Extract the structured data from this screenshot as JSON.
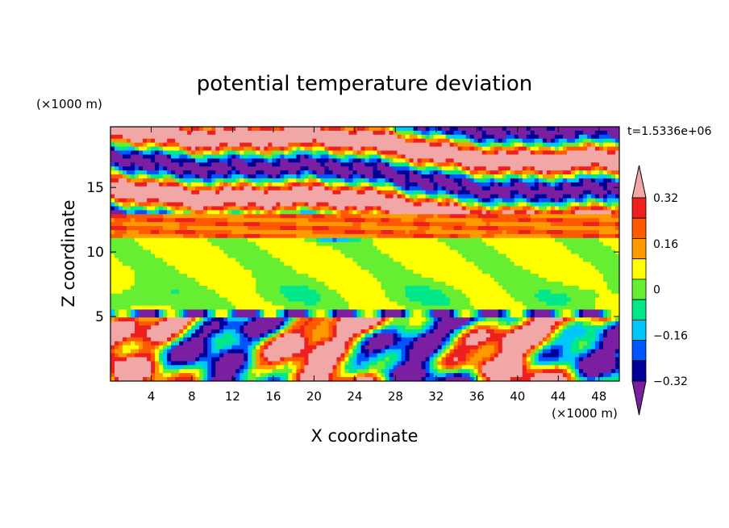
{
  "chart_data": {
    "type": "heatmap",
    "title": "potential temperature deviation",
    "time_label": "t=1.5336e+06",
    "xlabel": "X coordinate",
    "ylabel": "Z coordinate",
    "x_unit": "(×1000 m)",
    "y_unit": "(×1000 m)",
    "xlim": [
      0,
      50
    ],
    "ylim": [
      0,
      19.7
    ],
    "x_ticks": [
      4,
      8,
      12,
      16,
      20,
      24,
      28,
      32,
      36,
      40,
      44,
      48
    ],
    "y_ticks": [
      5,
      10,
      15
    ],
    "colorbar": {
      "levels": [
        -0.4,
        -0.32,
        -0.24,
        -0.16,
        -0.08,
        0,
        0.08,
        0.16,
        0.24,
        0.32,
        0.4
      ],
      "labels": [
        "0.32",
        "0.16",
        "0",
        "−0.16",
        "−0.32"
      ],
      "label_values": [
        0.32,
        0.16,
        0,
        -0.16,
        -0.32
      ],
      "colors": [
        "#7a1fa2",
        "#000099",
        "#0055ff",
        "#00c8ff",
        "#00e88a",
        "#66ee33",
        "#ffff00",
        "#ff9900",
        "#ff5a00",
        "#ee1f1f",
        "#f2a7a7"
      ],
      "extend": "both"
    },
    "approx_layers": [
      {
        "z_range": [
          17.0,
          19.7
        ],
        "dominant": "purple / pink banding"
      },
      {
        "z_range": [
          13.0,
          17.0
        ],
        "dominant": "pink and purple bands tilted upward to the right"
      },
      {
        "z_range": [
          11.0,
          13.0
        ],
        "dominant": "orange / yellow"
      },
      {
        "z_range": [
          5.5,
          11.0
        ],
        "dominant": "green"
      },
      {
        "z_range": [
          0.0,
          5.5
        ],
        "dominant": "mixed cool and warm plumes"
      }
    ]
  }
}
